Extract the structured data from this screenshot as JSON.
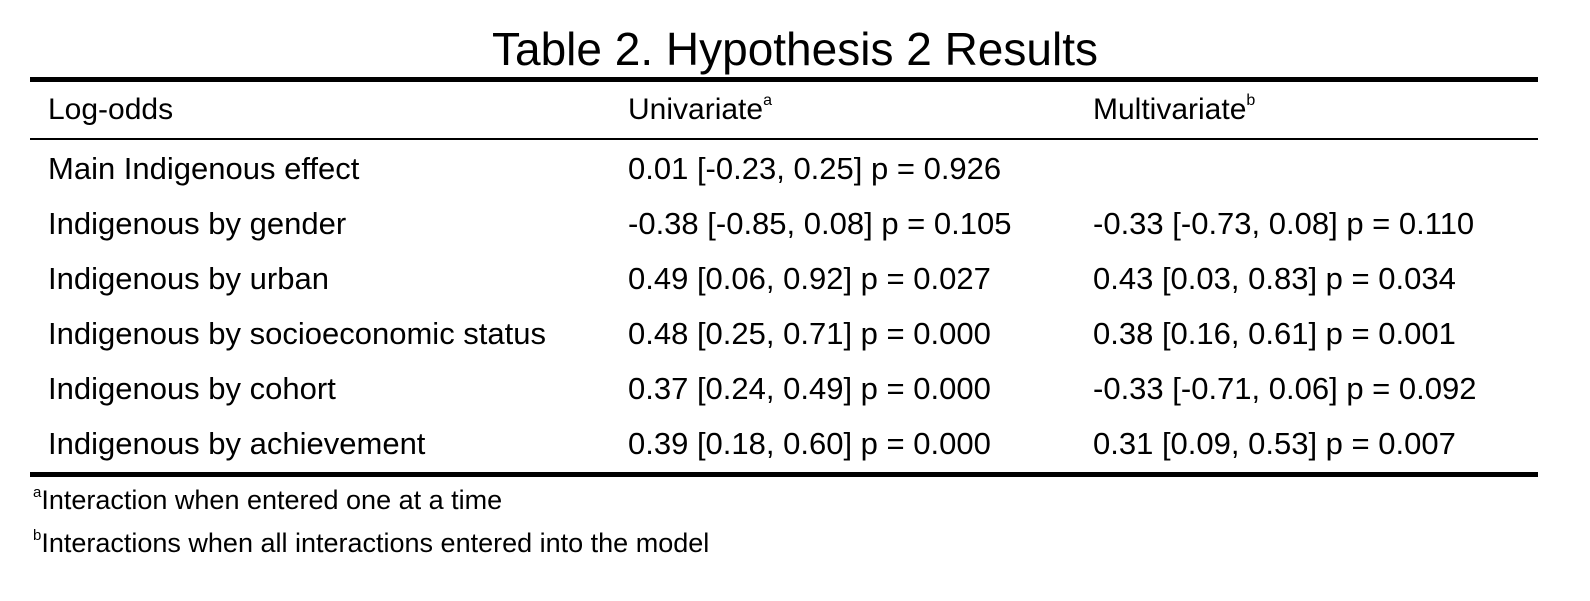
{
  "title": "Table 2. Hypothesis 2 Results",
  "table": {
    "columns": [
      {
        "label": "Log-odds",
        "sup": ""
      },
      {
        "label": "Univariate",
        "sup": "a"
      },
      {
        "label": "Multivariate",
        "sup": "b"
      }
    ],
    "rows": [
      {
        "label": "Main Indigenous effect",
        "univariate": "0.01 [-0.23, 0.25] p = 0.926",
        "multivariate": ""
      },
      {
        "label": "Indigenous by gender",
        "univariate": "-0.38 [-0.85, 0.08] p = 0.105",
        "multivariate": "-0.33 [-0.73, 0.08] p = 0.110"
      },
      {
        "label": "Indigenous by urban",
        "univariate": "0.49 [0.06, 0.92] p = 0.027",
        "multivariate": "0.43 [0.03, 0.83] p = 0.034"
      },
      {
        "label": "Indigenous by socioeconomic status",
        "univariate": "0.48 [0.25, 0.71] p = 0.000",
        "multivariate": "0.38 [0.16, 0.61] p = 0.001"
      },
      {
        "label": "Indigenous by cohort",
        "univariate": "0.37 [0.24, 0.49] p = 0.000",
        "multivariate": "-0.33 [-0.71, 0.06] p = 0.092"
      },
      {
        "label": "Indigenous by achievement",
        "univariate": "0.39 [0.18, 0.60] p = 0.000",
        "multivariate": "0.31 [0.09, 0.53] p = 0.007"
      }
    ]
  },
  "notes": [
    {
      "mark": "a",
      "text": "Interaction when entered one at a time"
    },
    {
      "mark": "b",
      "text": "Interactions when all interactions entered into the model"
    }
  ]
}
